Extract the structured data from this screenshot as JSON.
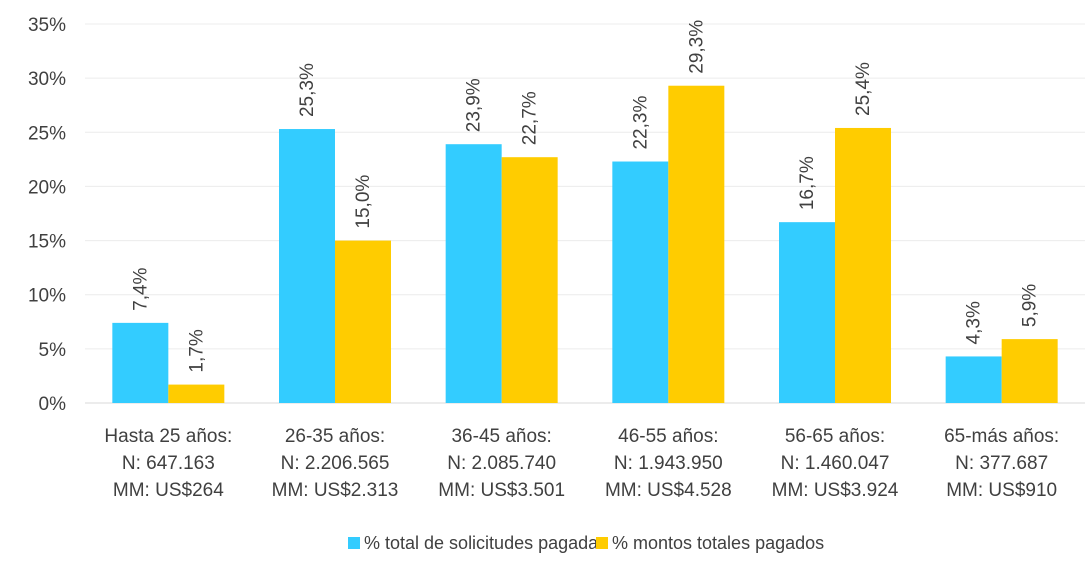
{
  "chart_data": {
    "type": "bar",
    "title": "",
    "xlabel": "",
    "ylabel": "",
    "ylim": [
      0,
      35
    ],
    "yticks": [
      0,
      5,
      10,
      15,
      20,
      25,
      30,
      35
    ],
    "ytick_labels": [
      "0%",
      "5%",
      "10%",
      "15%",
      "20%",
      "25%",
      "30%",
      "35%"
    ],
    "grid": "horizontal",
    "legend_position": "bottom",
    "categories": [
      [
        "Hasta 25 años:",
        "N: 647.163",
        "MM: US$264"
      ],
      [
        "26-35 años:",
        "N: 2.206.565",
        "MM: US$2.313"
      ],
      [
        "36-45 años:",
        "N: 2.085.740",
        "MM: US$3.501"
      ],
      [
        "46-55 años:",
        "N: 1.943.950",
        "MM: US$4.528"
      ],
      [
        "56-65 años:",
        "N: 1.460.047",
        "MM: US$3.924"
      ],
      [
        "65-más años:",
        "N: 377.687",
        "MM: US$910"
      ]
    ],
    "series": [
      {
        "name": "% total de solicitudes pagadas",
        "color": "#33ccff",
        "values": [
          7.4,
          25.3,
          23.9,
          22.3,
          16.7,
          4.3
        ],
        "labels": [
          "7,4%",
          "25,3%",
          "23,9%",
          "22,3%",
          "16,7%",
          "4,3%"
        ]
      },
      {
        "name": "% montos totales pagados",
        "color": "#ffcc00",
        "values": [
          1.7,
          15.0,
          22.7,
          29.3,
          25.4,
          5.9
        ],
        "labels": [
          "1,7%",
          "15,0%",
          "22,7%",
          "29,3%",
          "25,4%",
          "5,9%"
        ]
      }
    ]
  }
}
